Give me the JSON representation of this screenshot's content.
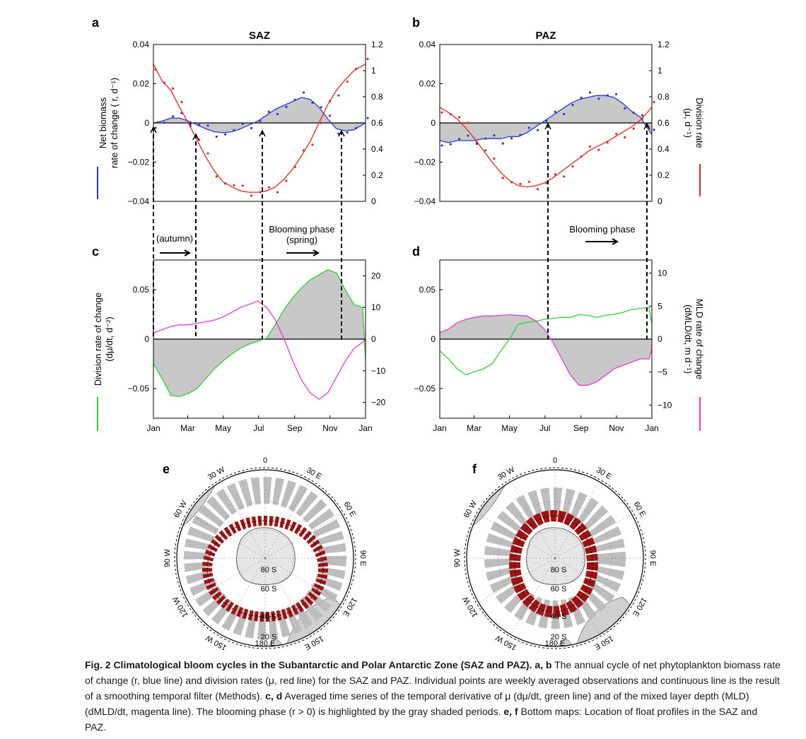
{
  "panels": {
    "a": {
      "letter": "a",
      "title": "SAZ"
    },
    "b": {
      "letter": "b",
      "title": "PAZ"
    },
    "c": {
      "letter": "c"
    },
    "d": {
      "letter": "d"
    },
    "e": {
      "letter": "e"
    },
    "f": {
      "letter": "f"
    }
  },
  "axis_labels": {
    "r_left": [
      "Net biomass",
      "rate of change ( r, d⁻¹)"
    ],
    "mu_right": [
      "Division rate",
      "(μ, d⁻¹)"
    ],
    "dmu_left": [
      "Division rate of change",
      "(dμ/dt, d⁻²)"
    ],
    "mld_right": [
      "MLD rate of change",
      "(dMLD/dt, m d⁻¹)"
    ]
  },
  "annotations": {
    "autumn": "(autumn)",
    "bloom_saz_1": "Blooming phase",
    "bloom_saz_2": "(spring)",
    "bloom_paz": "Blooming phase"
  },
  "months": [
    "Jan",
    "Mar",
    "May",
    "Jul",
    "Sep",
    "Nov",
    "Jan"
  ],
  "colors": {
    "r_line": "#2a36d8",
    "mu_line": "#e02828",
    "dmu_line": "#2fd12f",
    "mld_line": "#e23bd8",
    "shade": "#c8c8c8",
    "ring": "#bdbdbd",
    "floats": "#a01212"
  },
  "map_labels": {
    "zero": "0",
    "w30": "30 W",
    "w60": "60 W",
    "w90": "90 W",
    "w120": "120 W",
    "w150": "150 W",
    "e30": "30 E",
    "e60": "60 E",
    "e90": "90 E",
    "e120": "120 E",
    "e150": "150 E",
    "e180": "180 E",
    "s80": "80 S",
    "s60": "60 S",
    "s40": "40 S",
    "s20": "20 S"
  },
  "chart_data": [
    {
      "type": "line",
      "panel": "a",
      "title": "SAZ",
      "xlabel": "",
      "x_ticks": [
        "Jan",
        "Mar",
        "May",
        "Jul",
        "Sep",
        "Nov",
        "Jan"
      ],
      "ylabel_left": "Net biomass rate of change ( r, d⁻¹)",
      "ylim_left": [
        -0.04,
        0.04
      ],
      "yticks_left": [
        "0.04",
        "0.02",
        "0",
        "−0.02",
        "−0.04"
      ],
      "ylabel_right": "Division rate (μ, d⁻¹)",
      "ylim_right": [
        0,
        1.2
      ],
      "yticks_right": [
        "1.2",
        "1",
        "0.8",
        "0.6",
        "0.4",
        "0.2",
        "0"
      ],
      "series": [
        {
          "name": "r",
          "axis": "left",
          "x_day": [
            0,
            15,
            30,
            45,
            60,
            75,
            90,
            105,
            120,
            135,
            150,
            165,
            180,
            195,
            210,
            225,
            240,
            255,
            270,
            285,
            300,
            315,
            330,
            345,
            365
          ],
          "values": [
            0,
            0.001,
            0.0025,
            0.0025,
            0.001,
            -0.001,
            -0.003,
            -0.0045,
            -0.005,
            -0.0045,
            -0.003,
            -0.001,
            0.001,
            0.004,
            0.007,
            0.009,
            0.011,
            0.013,
            0.012,
            0.008,
            0.002,
            -0.003,
            -0.004,
            -0.0035,
            0
          ]
        },
        {
          "name": "μ",
          "axis": "right",
          "x_day": [
            0,
            15,
            30,
            45,
            60,
            75,
            90,
            105,
            120,
            135,
            150,
            165,
            180,
            195,
            210,
            225,
            240,
            255,
            270,
            285,
            300,
            315,
            330,
            345,
            365
          ],
          "values": [
            1.05,
            0.92,
            0.85,
            0.72,
            0.6,
            0.47,
            0.34,
            0.23,
            0.15,
            0.11,
            0.08,
            0.07,
            0.07,
            0.08,
            0.11,
            0.17,
            0.25,
            0.35,
            0.46,
            0.6,
            0.74,
            0.85,
            0.93,
            1.0,
            1.05
          ]
        }
      ],
      "annotations": [
        "(autumn)",
        "Blooming phase",
        "(spring)"
      ]
    },
    {
      "type": "line",
      "panel": "b",
      "title": "PAZ",
      "xlabel": "",
      "x_ticks": [
        "Jan",
        "Mar",
        "May",
        "Jul",
        "Sep",
        "Nov",
        "Jan"
      ],
      "ylim_left": [
        -0.04,
        0.04
      ],
      "ylim_right": [
        0,
        1.2
      ],
      "yticks_left": [
        "0.04",
        "0.02",
        "0",
        "−0.02",
        "−0.04"
      ],
      "yticks_right": [
        "1.2",
        "1",
        "0.8",
        "0.6",
        "0.4",
        "0.2",
        "0"
      ],
      "series": [
        {
          "name": "r",
          "axis": "left",
          "x_day": [
            0,
            15,
            30,
            45,
            60,
            75,
            90,
            105,
            120,
            135,
            150,
            165,
            180,
            195,
            210,
            225,
            240,
            255,
            270,
            285,
            300,
            315,
            330,
            345,
            365
          ],
          "values": [
            -0.009,
            -0.01,
            -0.009,
            -0.009,
            -0.009,
            -0.008,
            -0.008,
            -0.008,
            -0.007,
            -0.007,
            -0.005,
            -0.002,
            0.001,
            0.004,
            0.007,
            0.01,
            0.012,
            0.013,
            0.014,
            0.014,
            0.013,
            0.01,
            0.006,
            0.003,
            -0.006
          ]
        },
        {
          "name": "μ",
          "axis": "right",
          "x_day": [
            0,
            15,
            30,
            45,
            60,
            75,
            90,
            105,
            120,
            135,
            150,
            165,
            180,
            195,
            210,
            225,
            240,
            255,
            270,
            285,
            300,
            315,
            330,
            345,
            365
          ],
          "values": [
            0.72,
            0.68,
            0.63,
            0.56,
            0.48,
            0.39,
            0.3,
            0.22,
            0.16,
            0.12,
            0.11,
            0.12,
            0.14,
            0.18,
            0.23,
            0.28,
            0.33,
            0.38,
            0.42,
            0.45,
            0.49,
            0.53,
            0.57,
            0.62,
            0.72
          ]
        }
      ],
      "annotations": [
        "Blooming phase"
      ]
    },
    {
      "type": "area",
      "panel": "c",
      "x_ticks": [
        "Jan",
        "Mar",
        "May",
        "Jul",
        "Sep",
        "Nov",
        "Jan"
      ],
      "ylabel_left": "Division rate of change (dμ/dt, d⁻²)",
      "ylim_left": [
        -0.08,
        0.08
      ],
      "yticks_left": [
        "0.05",
        "0",
        "−0.05"
      ],
      "ylim_right": [
        -25,
        25
      ],
      "yticks_right": [
        "20",
        "10",
        "0",
        "−10",
        "−20"
      ],
      "series": [
        {
          "name": "dμ/dt",
          "axis": "left",
          "x_day": [
            0,
            15,
            30,
            45,
            60,
            75,
            90,
            105,
            120,
            135,
            150,
            165,
            180,
            195,
            210,
            225,
            240,
            255,
            270,
            285,
            300,
            315,
            330,
            345,
            360,
            365
          ],
          "values": [
            -0.025,
            -0.04,
            -0.057,
            -0.058,
            -0.055,
            -0.05,
            -0.04,
            -0.03,
            -0.022,
            -0.015,
            -0.009,
            -0.005,
            -0.002,
            0.001,
            0.015,
            0.03,
            0.042,
            0.052,
            0.06,
            0.065,
            0.07,
            0.067,
            0.05,
            0.035,
            0.032,
            -0.02
          ]
        },
        {
          "name": "dMLD/dt",
          "axis": "right",
          "x_day": [
            0,
            15,
            30,
            45,
            60,
            75,
            90,
            105,
            120,
            135,
            150,
            165,
            180,
            195,
            210,
            225,
            240,
            255,
            270,
            285,
            300,
            315,
            330,
            345,
            360,
            365
          ],
          "values": [
            2,
            3,
            4,
            4.5,
            4.5,
            5,
            5.5,
            6,
            7,
            8.5,
            10,
            11,
            12,
            10,
            6,
            0,
            -7,
            -13,
            -17,
            -19,
            -17,
            -12,
            -7,
            -3,
            -1,
            0
          ]
        }
      ]
    },
    {
      "type": "area",
      "panel": "d",
      "x_ticks": [
        "Jan",
        "Mar",
        "May",
        "Jul",
        "Sep",
        "Nov",
        "Jan"
      ],
      "ylim_left": [
        -0.08,
        0.08
      ],
      "yticks_left": [
        "0.05",
        "0",
        "−0.05"
      ],
      "ylabel_right": "MLD rate of change (dMLD/dt, m d⁻¹)",
      "ylim_right": [
        -12,
        12
      ],
      "yticks_right": [
        "10",
        "5",
        "0",
        "−5",
        "−10"
      ],
      "series": [
        {
          "name": "dμ/dt",
          "axis": "left",
          "x_day": [
            0,
            15,
            30,
            45,
            60,
            75,
            90,
            105,
            120,
            135,
            150,
            165,
            180,
            195,
            210,
            225,
            240,
            255,
            270,
            285,
            300,
            315,
            330,
            345,
            360,
            365
          ],
          "values": [
            -0.012,
            -0.02,
            -0.03,
            -0.036,
            -0.033,
            -0.03,
            -0.025,
            -0.012,
            0,
            0.015,
            0.017,
            0.018,
            0.02,
            0.021,
            0.022,
            0.022,
            0.025,
            0.024,
            0.022,
            0.024,
            0.025,
            0.027,
            0.03,
            0.031,
            0.032,
            0.015
          ]
        },
        {
          "name": "dMLD/dt",
          "axis": "right",
          "x_day": [
            0,
            15,
            30,
            45,
            60,
            75,
            90,
            105,
            120,
            135,
            150,
            165,
            180,
            195,
            210,
            225,
            240,
            255,
            270,
            285,
            300,
            315,
            330,
            345,
            360,
            365
          ],
          "values": [
            1,
            1.5,
            2.5,
            3,
            3.3,
            3.5,
            3.5,
            3.6,
            3.7,
            3.6,
            3.5,
            2.8,
            1.5,
            -0.5,
            -3,
            -5.5,
            -7,
            -7,
            -6.5,
            -5.5,
            -4.5,
            -4,
            -3.5,
            -3,
            -3,
            -1.5
          ]
        }
      ]
    }
  ],
  "caption": {
    "lead": "Fig. 2 Climatological bloom cycles in the Subantarctic and Polar Antarctic Zone (SAZ and PAZ).",
    "ab": "a, b",
    "ab_text": "The annual cycle of net phytoplankton biomass rate of change (r, blue line) and division rates (μ, red line) for the SAZ and PAZ. Individual points are weekly averaged observations and continuous line is the result of a smoothing temporal filter (Methods).",
    "cd": "c, d",
    "cd_text": "Averaged time series of the temporal derivative of μ (dμ/dt, green line) and of the mixed layer depth (MLD) (dMLD/dt, magenta line). The blooming phase (r > 0) is highlighted by the gray shaded periods.",
    "ef": "e, f",
    "ef_text": "Bottom maps: Location of float profiles in the SAZ and PAZ."
  }
}
